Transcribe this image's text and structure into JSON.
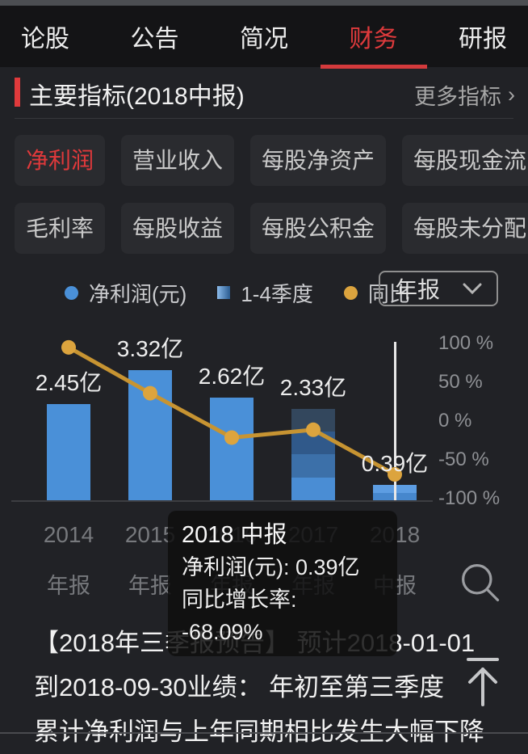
{
  "tabs": {
    "items": [
      {
        "label": "论股",
        "active": false
      },
      {
        "label": "公告",
        "active": false
      },
      {
        "label": "简况",
        "active": false
      },
      {
        "label": "财务",
        "active": true
      },
      {
        "label": "研报",
        "active": false
      }
    ]
  },
  "section": {
    "title": "主要指标(2018中报)",
    "more_label": "更多指标",
    "more_chevron": "›"
  },
  "filters": {
    "row1": [
      {
        "label": "净利润",
        "active": true
      },
      {
        "label": "营业收入",
        "active": false
      },
      {
        "label": "每股净资产",
        "active": false
      },
      {
        "label": "每股现金流",
        "active": false
      }
    ],
    "row2": [
      {
        "label": "毛利率",
        "active": false
      },
      {
        "label": "每股收益",
        "active": false
      },
      {
        "label": "每股公积金",
        "active": false
      },
      {
        "label": "每股未分配",
        "active": false
      }
    ]
  },
  "legend": {
    "items": [
      {
        "label": "净利润(元)",
        "marker": "blue-dot"
      },
      {
        "label": "1-4季度",
        "marker": "blue-gradient-square"
      },
      {
        "label": "同比",
        "marker": "orange-dot"
      }
    ],
    "period_select": {
      "value": "年报"
    }
  },
  "chart_data": {
    "type": "bar",
    "categories": [
      "2014",
      "2015",
      "2016",
      "2017",
      "2018"
    ],
    "category_sublabels": [
      "年报",
      "年报",
      "年报",
      "年报",
      "中报"
    ],
    "series": [
      {
        "name": "净利润(元)",
        "type": "bar",
        "unit": "亿",
        "values": [
          2.45,
          3.32,
          2.62,
          2.33,
          0.39
        ],
        "labels": [
          "2.45亿",
          "3.32亿",
          "2.62亿",
          "2.33亿",
          "0.39亿"
        ]
      },
      {
        "name": "同比",
        "type": "line",
        "unit": "%",
        "values": [
          94,
          35.5,
          -21.1,
          -11.1,
          -68.09
        ]
      }
    ],
    "right_axis_ticks": [
      "100 %",
      "50 %",
      "0 %",
      "-50 %",
      "-100 %"
    ],
    "ylim_right": [
      -100,
      100
    ],
    "ylim_left": [
      0,
      4
    ],
    "bar_segment_counts": [
      1,
      1,
      1,
      4,
      2
    ],
    "highlight_index": 4,
    "legend_position": "top",
    "grid": false
  },
  "tooltip": {
    "title": "2018 中报",
    "line1": "净利润(元): 0.39亿",
    "line2": "同比增长率: -68.09%"
  },
  "news": {
    "lines": [
      "【2018年三季报预告】 预计2018-01-01",
      "到2018-09-30业绩： 年初至第三季度",
      "累计净利润与上年同期相比发生大幅下降"
    ]
  },
  "colors": {
    "accent_red": "#de3a3c",
    "bar_blue": "#4a90d8",
    "bar_segments_4": [
      "#33475d",
      "#30598a",
      "#3c70a9",
      "#4a8dd4"
    ],
    "bar_segments_2": [
      "#5d9de2",
      "#4687cd"
    ],
    "line_orange": "#c79432",
    "dot_orange": "#dca43e",
    "crosshair_white": "#e8e8e8"
  }
}
